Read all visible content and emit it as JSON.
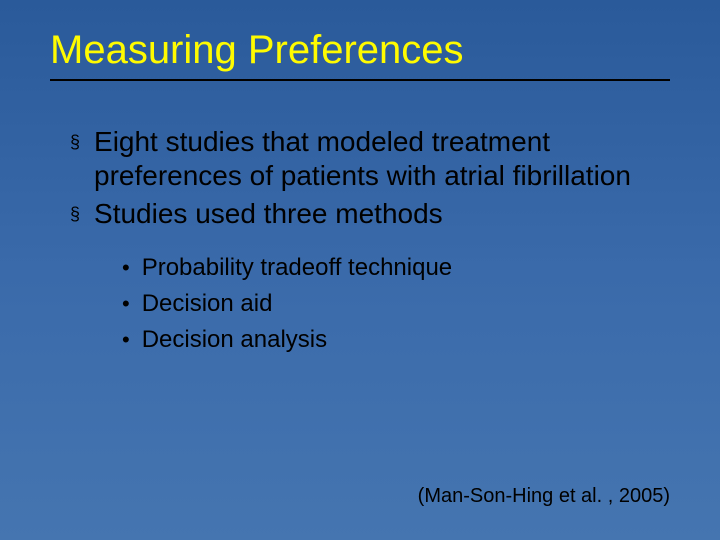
{
  "slide": {
    "title": "Measuring Preferences",
    "title_color": "#fffb00",
    "title_fontsize": 40,
    "underline_color": "#000000",
    "background_gradient": [
      "#2a5a9a",
      "#3a6aaa",
      "#4575b0"
    ],
    "body_text_color": "#000000",
    "bullets": [
      {
        "text": "Eight studies that modeled treatment preferences of patients with atrial fibrillation",
        "fontsize": 28,
        "marker": "§"
      },
      {
        "text": "Studies used three methods",
        "fontsize": 28,
        "marker": "§"
      }
    ],
    "sub_bullets": [
      {
        "text": "Probability tradeoff technique",
        "fontsize": 24,
        "marker": "•"
      },
      {
        "text": "Decision aid",
        "fontsize": 24,
        "marker": "•"
      },
      {
        "text": "Decision analysis",
        "fontsize": 24,
        "marker": "•"
      }
    ],
    "citation": "(Man-Son-Hing et al. , 2005)",
    "citation_fontsize": 20
  }
}
